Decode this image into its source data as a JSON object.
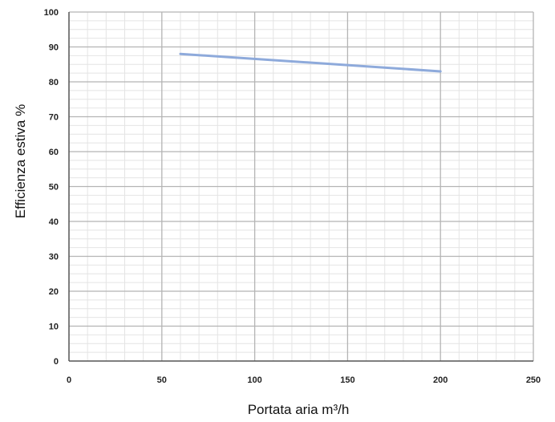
{
  "chart_data": {
    "type": "line",
    "xlabel": "Portata aria m³/h",
    "ylabel": "Efficienza estiva %",
    "xlim": [
      0,
      250
    ],
    "ylim": [
      0,
      100
    ],
    "x_ticks": [
      "0",
      "50",
      "100",
      "150",
      "200",
      "250"
    ],
    "y_ticks": [
      "0",
      "10",
      "20",
      "30",
      "40",
      "50",
      "60",
      "70",
      "80",
      "90",
      "100"
    ],
    "grid": true,
    "series": [
      {
        "x": [
          60,
          200
        ],
        "values": [
          88,
          83
        ],
        "color": "#8eaadb"
      }
    ]
  }
}
